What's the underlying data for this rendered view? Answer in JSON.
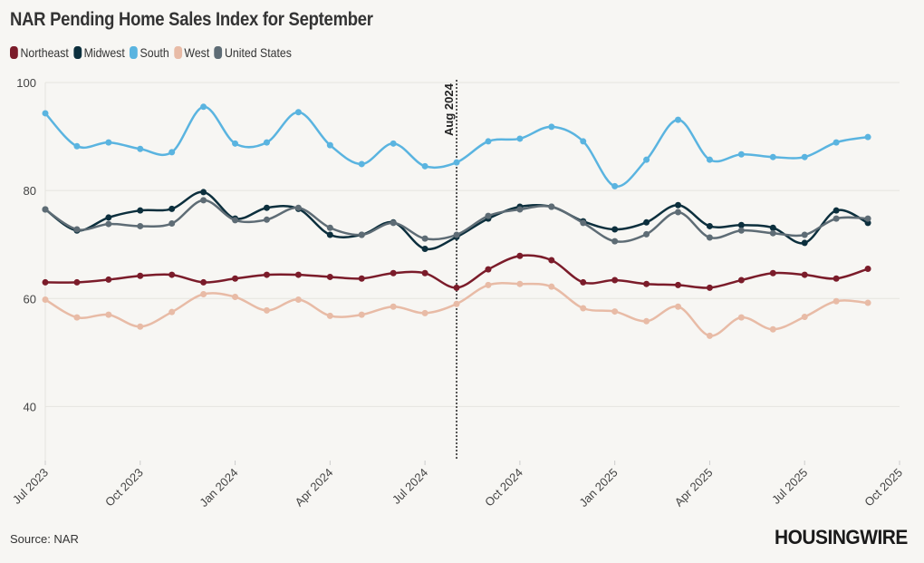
{
  "chart_data": {
    "type": "line",
    "title": "NAR Pending Home Sales Index for September",
    "xlabel": "",
    "ylabel": "",
    "ylim": [
      30,
      100
    ],
    "yticks": [
      40,
      60,
      80,
      100
    ],
    "xlim": [
      "2023-07",
      "2025-10"
    ],
    "xticks": [
      {
        "date": "2023-07",
        "label": "Jul 2023"
      },
      {
        "date": "2023-10",
        "label": "Oct 2023"
      },
      {
        "date": "2024-01",
        "label": "Jan 2024"
      },
      {
        "date": "2024-04",
        "label": "Apr 2024"
      },
      {
        "date": "2024-07",
        "label": "Jul 2024"
      },
      {
        "date": "2024-10",
        "label": "Oct 2024"
      },
      {
        "date": "2025-01",
        "label": "Jan 2025"
      },
      {
        "date": "2025-04",
        "label": "Apr 2025"
      },
      {
        "date": "2025-07",
        "label": "Jul 2025"
      },
      {
        "date": "2025-10",
        "label": "Oct 2025"
      }
    ],
    "grid": true,
    "legend": "top-left",
    "annotation": {
      "date": "2024-08",
      "label": "Aug 2024"
    },
    "x": [
      "2023-07",
      "2023-08",
      "2023-09",
      "2023-10",
      "2023-11",
      "2023-12",
      "2024-01",
      "2024-02",
      "2024-03",
      "2024-04",
      "2024-05",
      "2024-06",
      "2024-07",
      "2024-08",
      "2024-09",
      "2024-10",
      "2024-11",
      "2024-12",
      "2025-01",
      "2025-02",
      "2025-03",
      "2025-04",
      "2025-05",
      "2025-06",
      "2025-07",
      "2025-08",
      "2025-09"
    ],
    "series": [
      {
        "name": "Northeast",
        "color": "#7b1c2a",
        "values": [
          63.0,
          63.0,
          63.5,
          64.2,
          64.4,
          63.0,
          63.7,
          64.4,
          64.4,
          64.0,
          63.7,
          64.7,
          64.7,
          62.0,
          65.4,
          67.9,
          67.1,
          63.0,
          63.4,
          62.7,
          62.5,
          62.0,
          63.4,
          64.7,
          64.4,
          63.7,
          65.5
        ]
      },
      {
        "name": "Midwest",
        "color": "#0c2f3d",
        "values": [
          76.5,
          72.6,
          75.0,
          76.3,
          76.6,
          79.7,
          74.8,
          76.8,
          76.6,
          71.8,
          71.8,
          74.1,
          69.2,
          71.4,
          74.8,
          77.0,
          77.0,
          74.3,
          72.8,
          74.1,
          77.3,
          73.4,
          73.6,
          73.1,
          70.3,
          76.3,
          74.0
        ]
      },
      {
        "name": "South",
        "color": "#5ab4e0",
        "values": [
          94.3,
          88.2,
          88.9,
          87.7,
          87.1,
          95.5,
          88.7,
          88.9,
          94.5,
          88.4,
          84.9,
          88.7,
          84.5,
          85.2,
          89.1,
          89.6,
          91.8,
          89.1,
          80.8,
          85.7,
          93.1,
          85.7,
          86.7,
          86.2,
          86.2,
          88.9,
          89.9
        ]
      },
      {
        "name": "West",
        "color": "#e8bba6",
        "values": [
          59.8,
          56.5,
          57.0,
          54.8,
          57.5,
          60.8,
          60.3,
          57.8,
          59.8,
          56.8,
          57.0,
          58.5,
          57.3,
          59.0,
          62.5,
          62.7,
          62.2,
          58.2,
          57.6,
          55.8,
          58.5,
          53.1,
          56.5,
          54.3,
          56.6,
          59.5,
          59.2
        ]
      },
      {
        "name": "United States",
        "color": "#5e6c75",
        "values": [
          76.5,
          72.8,
          73.8,
          73.4,
          73.9,
          78.2,
          74.5,
          74.6,
          76.8,
          73.1,
          71.8,
          74.0,
          71.1,
          71.8,
          75.3,
          76.5,
          77.0,
          74.0,
          70.6,
          71.9,
          76.0,
          71.3,
          72.6,
          72.1,
          71.8,
          74.8,
          74.8
        ]
      }
    ]
  },
  "source": "Source: NAR",
  "logo": "HOUSINGWIRE"
}
